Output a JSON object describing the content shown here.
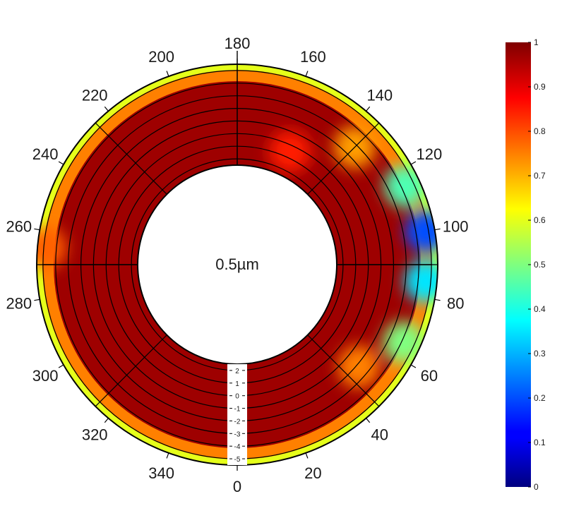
{
  "chart_data": {
    "type": "heatmap",
    "projection": "polar-annulus",
    "center_label": "0.5µm",
    "angle_direction": "counterclockwise from bottom",
    "angle_ticks": [
      0,
      20,
      40,
      60,
      80,
      100,
      120,
      140,
      160,
      180,
      200,
      220,
      240,
      260,
      280,
      300,
      320,
      340
    ],
    "radial_ticks": [
      2,
      1,
      0,
      -1,
      -2,
      -3,
      -4,
      -5
    ],
    "radial_range": [
      -5.5,
      2.5
    ],
    "colorbar": {
      "colormap": "jet",
      "range": [
        0,
        1
      ],
      "ticks": [
        0,
        0.1,
        0.2,
        0.3,
        0.4,
        0.5,
        0.6,
        0.7,
        0.8,
        0.9,
        1
      ]
    },
    "grid": true,
    "field_summary": {
      "interior_value": 0.97,
      "outer_edge_value": 0.6,
      "features": [
        {
          "angle": 100,
          "radial": -4.8,
          "value": 0.2
        },
        {
          "angle": 85,
          "radial": -4.6,
          "value": 0.35
        },
        {
          "angle": 115,
          "radial": -4.3,
          "value": 0.45
        },
        {
          "angle": 65,
          "radial": -4.2,
          "value": 0.5
        },
        {
          "angle": 135,
          "radial": -2.8,
          "value": 0.72
        },
        {
          "angle": 50,
          "radial": -2.2,
          "value": 0.75
        },
        {
          "angle": 155,
          "radial": 0.5,
          "value": 0.85
        },
        {
          "angle": 265,
          "radial": -4.9,
          "value": 0.78
        }
      ]
    }
  }
}
